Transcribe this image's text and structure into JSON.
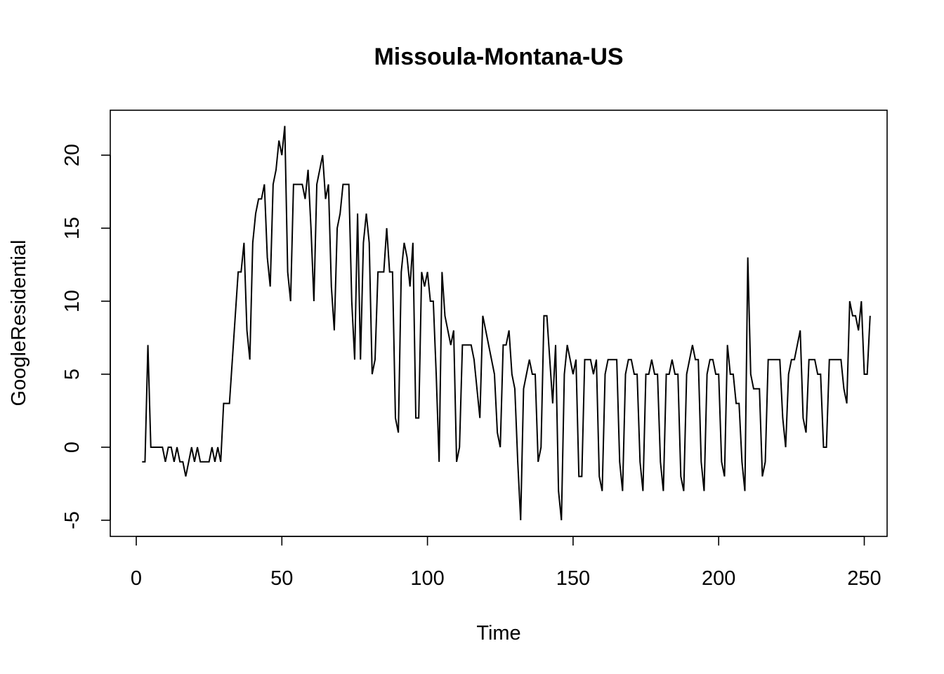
{
  "chart_data": {
    "type": "line",
    "title": "Missoula-Montana-US",
    "xlabel": "Time",
    "ylabel": "GoogleResidential",
    "xlim": [
      0,
      250
    ],
    "ylim": [
      -5,
      22
    ],
    "x_ticks": [
      0,
      50,
      100,
      150,
      200,
      250
    ],
    "y_ticks": [
      -5,
      0,
      5,
      10,
      15,
      20
    ],
    "grid": false,
    "legend": "none",
    "series": [
      {
        "start_x": 2,
        "values": [
          -1,
          -1,
          7,
          0,
          0,
          0,
          0,
          0,
          -1,
          0,
          0,
          -1,
          0,
          -1,
          -1,
          -2,
          -1,
          0,
          -1,
          0,
          -1,
          -1,
          -1,
          -1,
          0,
          -1,
          0,
          -1,
          3,
          3,
          3,
          6,
          9,
          12,
          12,
          14,
          8,
          6,
          14,
          16,
          17,
          17,
          18,
          13,
          11,
          18,
          19,
          21,
          20,
          22,
          12,
          10,
          18,
          18,
          18,
          18,
          17,
          19,
          15,
          10,
          18,
          19,
          20,
          17,
          18,
          11,
          8,
          15,
          16,
          18,
          18,
          18,
          10,
          6,
          16,
          6,
          14,
          16,
          14,
          5,
          6,
          12,
          12,
          12,
          15,
          12,
          12,
          2,
          1,
          12,
          14,
          13,
          11,
          14,
          2,
          2,
          12,
          11,
          12,
          10,
          10,
          5,
          -1,
          12,
          9,
          8,
          7,
          8,
          -1,
          0,
          7,
          7,
          7,
          7,
          6,
          4,
          2,
          9,
          8,
          7,
          6,
          5,
          1,
          0,
          7,
          7,
          8,
          5,
          4,
          -1,
          -5,
          4,
          5,
          6,
          5,
          5,
          -1,
          0,
          9,
          9,
          6,
          3,
          7,
          -3,
          -5,
          5,
          7,
          6,
          5,
          6,
          -2,
          -2,
          6,
          6,
          6,
          5,
          6,
          -2,
          -3,
          5,
          6,
          6,
          6,
          6,
          -1,
          -3,
          5,
          6,
          6,
          5,
          5,
          -1,
          -3,
          5,
          5,
          6,
          5,
          5,
          -1,
          -3,
          5,
          5,
          6,
          5,
          5,
          -2,
          -3,
          5,
          6,
          7,
          6,
          6,
          -1,
          -3,
          5,
          6,
          6,
          5,
          5,
          -1,
          -2,
          7,
          5,
          5,
          3,
          3,
          -1,
          -3,
          13,
          5,
          4,
          4,
          4,
          -2,
          -1,
          6,
          6,
          6,
          6,
          6,
          2,
          0,
          5,
          6,
          6,
          7,
          8,
          2,
          1,
          6,
          6,
          6,
          5,
          5,
          0,
          0,
          6,
          6,
          6,
          6,
          6,
          4,
          3,
          10,
          9,
          9,
          8,
          10,
          5,
          5,
          9
        ]
      }
    ]
  }
}
